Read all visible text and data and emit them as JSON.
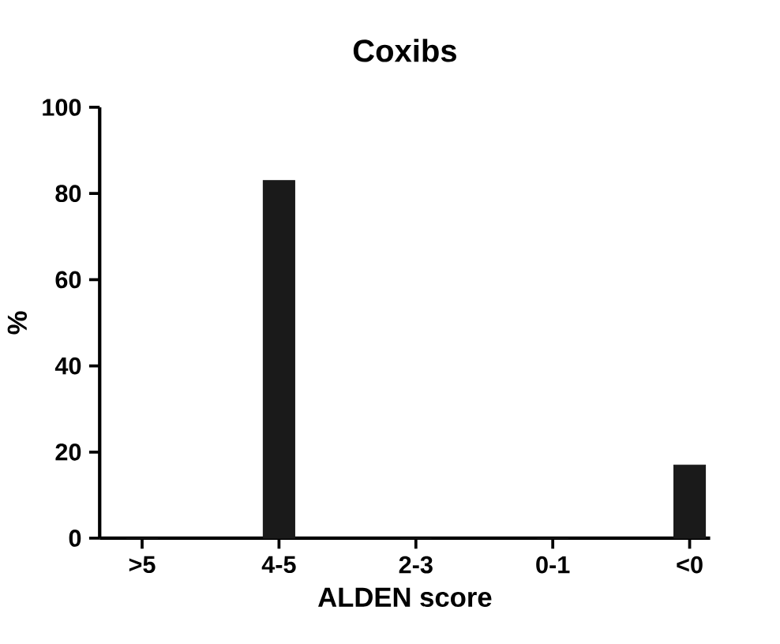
{
  "chart_data": {
    "type": "bar",
    "title": "Coxibs",
    "xlabel": "ALDEN score",
    "ylabel": "%",
    "categories": [
      ">5",
      "4-5",
      "2-3",
      "0-1",
      "<0"
    ],
    "values": [
      0,
      83,
      0,
      0,
      17
    ],
    "color": "#1a1a1a",
    "ylim": [
      0,
      100
    ],
    "yticks": [
      0,
      20,
      40,
      60,
      80,
      100
    ]
  }
}
